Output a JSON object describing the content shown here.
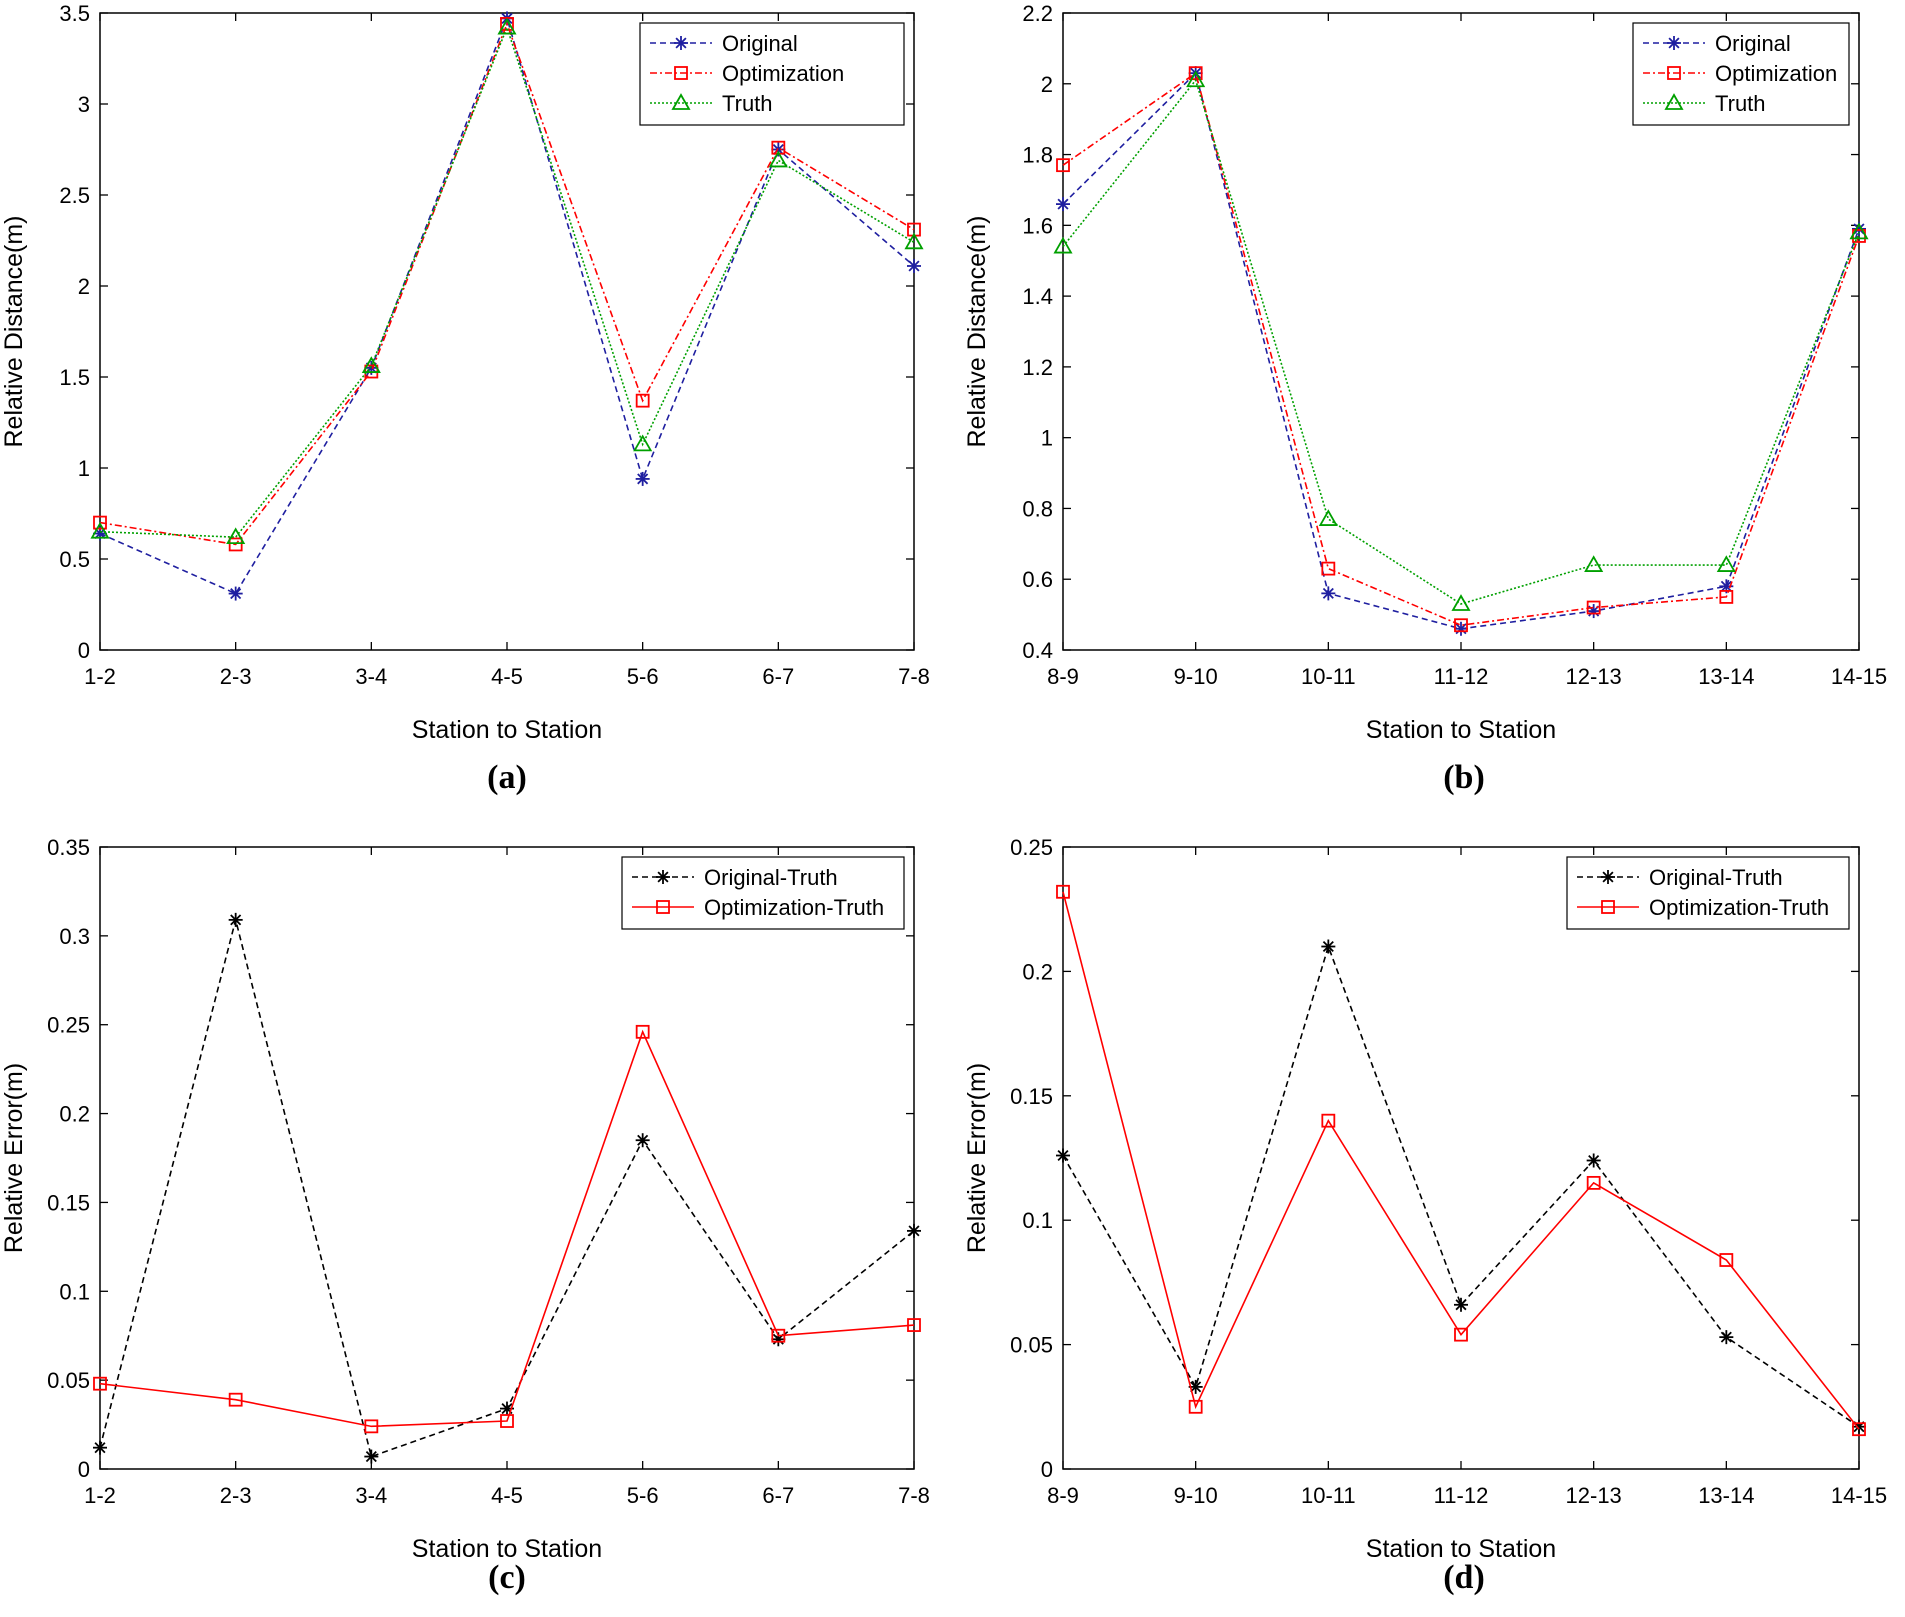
{
  "chart_data": [
    {
      "panel": "(a)",
      "type": "line",
      "categories": [
        "1-2",
        "2-3",
        "3-4",
        "4-5",
        "5-6",
        "6-7",
        "7-8"
      ],
      "xlabel": "Station to Station",
      "ylabel": "Relative Distance(m)",
      "ylim": [
        0,
        3.5
      ],
      "yticks": [
        0,
        0.5,
        1,
        1.5,
        2,
        2.5,
        3,
        3.5
      ],
      "ytick_labels": [
        "0",
        "0.5",
        "1",
        "1.5",
        "2",
        "2.5",
        "3",
        "3.5"
      ],
      "legend": "top-right",
      "series": [
        {
          "name": "Original",
          "color": "#1f1fa0",
          "dash": "6,4",
          "marker": "star",
          "values": [
            0.64,
            0.31,
            1.55,
            3.47,
            0.94,
            2.75,
            2.11
          ]
        },
        {
          "name": "Optimization",
          "color": "#ff0000",
          "dash": "7,3,2,3",
          "marker": "square",
          "values": [
            0.7,
            0.58,
            1.53,
            3.44,
            1.37,
            2.76,
            2.31
          ]
        },
        {
          "name": "Truth",
          "color": "#00a000",
          "dash": "2,2",
          "marker": "triangle",
          "values": [
            0.65,
            0.62,
            1.56,
            3.42,
            1.13,
            2.69,
            2.24
          ]
        }
      ]
    },
    {
      "panel": "(b)",
      "type": "line",
      "categories": [
        "8-9",
        "9-10",
        "10-11",
        "11-12",
        "12-13",
        "13-14",
        "14-15"
      ],
      "xlabel": "Station to Station",
      "ylabel": "Relative Distance(m)",
      "ylim": [
        0.4,
        2.2
      ],
      "yticks": [
        0.4,
        0.6,
        0.8,
        1.0,
        1.2,
        1.4,
        1.6,
        1.8,
        2.0,
        2.2
      ],
      "ytick_labels": [
        "0.4",
        "0.6",
        "0.8",
        "1",
        "1.2",
        "1.4",
        "1.6",
        "1.8",
        "2",
        "2.2"
      ],
      "legend": "top-right",
      "series": [
        {
          "name": "Original",
          "color": "#1f1fa0",
          "dash": "6,4",
          "marker": "star",
          "values": [
            1.66,
            2.03,
            0.56,
            0.46,
            0.51,
            0.58,
            1.59
          ]
        },
        {
          "name": "Optimization",
          "color": "#ff0000",
          "dash": "7,3,2,3",
          "marker": "square",
          "values": [
            1.77,
            2.03,
            0.63,
            0.47,
            0.52,
            0.55,
            1.57
          ]
        },
        {
          "name": "Truth",
          "color": "#00a000",
          "dash": "2,2",
          "marker": "triangle",
          "values": [
            1.54,
            2.01,
            0.77,
            0.53,
            0.64,
            0.64,
            1.58
          ]
        }
      ]
    },
    {
      "panel": "(c)",
      "type": "line",
      "categories": [
        "1-2",
        "2-3",
        "3-4",
        "4-5",
        "5-6",
        "6-7",
        "7-8"
      ],
      "xlabel": "Station to Station",
      "ylabel": "Relative Error(m)",
      "ylim": [
        0,
        0.35
      ],
      "yticks": [
        0,
        0.05,
        0.1,
        0.15,
        0.2,
        0.25,
        0.3,
        0.35
      ],
      "ytick_labels": [
        "0",
        "0.05",
        "0.1",
        "0.15",
        "0.2",
        "0.25",
        "0.3",
        "0.35"
      ],
      "legend": "top-right",
      "series": [
        {
          "name": "Original-Truth",
          "color": "#000000",
          "dash": "6,4",
          "marker": "star",
          "values": [
            0.012,
            0.309,
            0.007,
            0.034,
            0.185,
            0.073,
            0.134
          ]
        },
        {
          "name": "Optimization-Truth",
          "color": "#ff0000",
          "dash": "",
          "marker": "square",
          "values": [
            0.048,
            0.039,
            0.024,
            0.027,
            0.246,
            0.075,
            0.081
          ]
        }
      ]
    },
    {
      "panel": "(d)",
      "type": "line",
      "categories": [
        "8-9",
        "9-10",
        "10-11",
        "11-12",
        "12-13",
        "13-14",
        "14-15"
      ],
      "xlabel": "Station to Station",
      "ylabel": "Relative Error(m)",
      "ylim": [
        0,
        0.25
      ],
      "yticks": [
        0,
        0.05,
        0.1,
        0.15,
        0.2,
        0.25
      ],
      "ytick_labels": [
        "0",
        "0.05",
        "0.1",
        "0.15",
        "0.2",
        "0.25"
      ],
      "legend": "top-right",
      "series": [
        {
          "name": "Original-Truth",
          "color": "#000000",
          "dash": "6,4",
          "marker": "star",
          "values": [
            0.126,
            0.033,
            0.21,
            0.066,
            0.124,
            0.053,
            0.017
          ]
        },
        {
          "name": "Optimization-Truth",
          "color": "#ff0000",
          "dash": "",
          "marker": "square",
          "values": [
            0.232,
            0.025,
            0.14,
            0.054,
            0.115,
            0.084,
            0.016
          ]
        }
      ]
    }
  ]
}
